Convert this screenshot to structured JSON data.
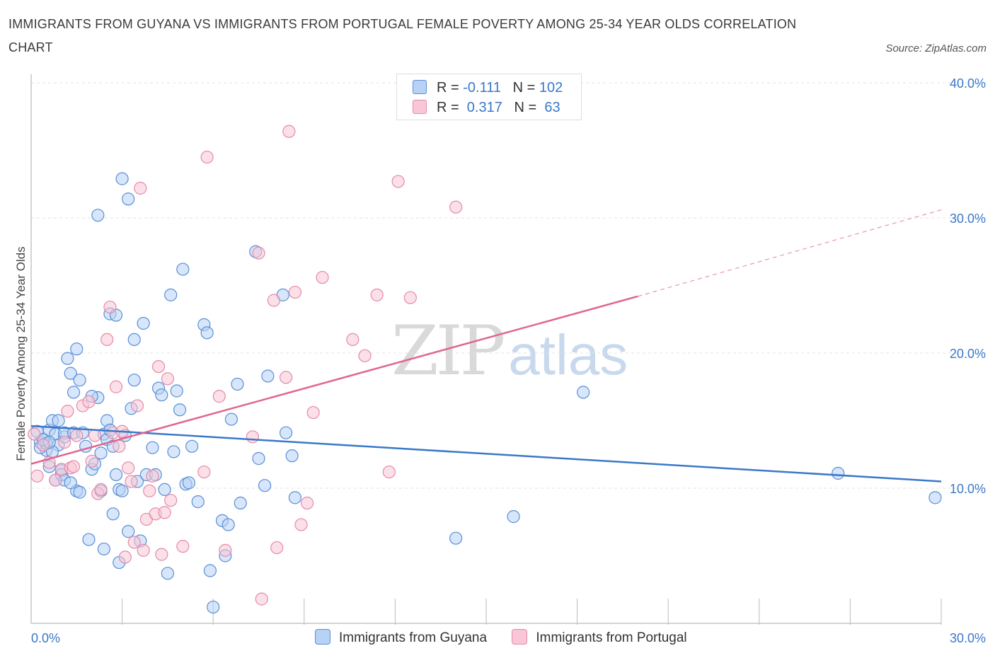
{
  "title": "IMMIGRANTS FROM GUYANA VS IMMIGRANTS FROM PORTUGAL FEMALE POVERTY AMONG 25-34 YEAR OLDS CORRELATION CHART",
  "source": "Source: ZipAtlas.com",
  "watermark": {
    "zip": "ZIP",
    "atlas": "atlas"
  },
  "colors": {
    "blue_fill": "#b7d2f5",
    "blue_stroke": "#5a8fd4",
    "blue_line": "#3b78c9",
    "pink_fill": "#f8c6d6",
    "pink_stroke": "#e58aa8",
    "pink_line": "#e0668f",
    "tick_text": "#3a78c9",
    "grid": "#e3e3e3"
  },
  "legend_top": [
    {
      "r_label": "R = ",
      "r_value": "-0.111",
      "n_label": "N = ",
      "n_value": "102"
    },
    {
      "r_label": "R = ",
      "r_value": " 0.317",
      "n_label": "N = ",
      "n_value": " 63"
    }
  ],
  "bottom_legend": [
    "Immigrants from Guyana",
    "Immigrants from Portugal"
  ],
  "chart_data": {
    "type": "scatter",
    "title": "IMMIGRANTS FROM GUYANA VS IMMIGRANTS FROM PORTUGAL FEMALE POVERTY AMONG 25-34 YEAR OLDS CORRELATION CHART",
    "xlabel": "",
    "ylabel": "Female Poverty Among 25-34 Year Olds",
    "xlim": [
      0,
      30
    ],
    "ylim": [
      0,
      40
    ],
    "x_tick_labels": [
      {
        "value": 0,
        "label": "0.0%"
      },
      {
        "value": 30,
        "label": "30.0%"
      }
    ],
    "y_tick_labels": [
      {
        "value": 10,
        "label": "10.0%"
      },
      {
        "value": 20,
        "label": "20.0%"
      },
      {
        "value": 30,
        "label": "30.0%"
      },
      {
        "value": 40,
        "label": "40.0%"
      }
    ],
    "grid": "horizontal dashed",
    "legend": "top-center",
    "series": [
      {
        "name": "Immigrants from Guyana",
        "R": -0.111,
        "N": 102,
        "trend": [
          [
            0,
            14.6
          ],
          [
            30,
            10.5
          ]
        ],
        "points": [
          [
            0.2,
            14.2
          ],
          [
            0.3,
            13.4
          ],
          [
            0.4,
            13.6
          ],
          [
            0.5,
            12.8
          ],
          [
            0.6,
            14.3
          ],
          [
            0.7,
            15.0
          ],
          [
            0.8,
            14.0
          ],
          [
            0.9,
            13.2
          ],
          [
            1.0,
            11.3
          ],
          [
            1.1,
            13.8
          ],
          [
            0.3,
            13.0
          ],
          [
            0.5,
            13.3
          ],
          [
            0.6,
            11.6
          ],
          [
            0.7,
            12.7
          ],
          [
            0.8,
            10.6
          ],
          [
            1.0,
            11.0
          ],
          [
            1.1,
            14.1
          ],
          [
            1.2,
            19.6
          ],
          [
            1.3,
            18.5
          ],
          [
            1.4,
            17.1
          ],
          [
            1.5,
            9.8
          ],
          [
            1.6,
            9.7
          ],
          [
            1.4,
            14.1
          ],
          [
            1.5,
            20.3
          ],
          [
            1.6,
            18.0
          ],
          [
            1.7,
            14.1
          ],
          [
            1.8,
            13.1
          ],
          [
            1.9,
            6.2
          ],
          [
            2.0,
            11.4
          ],
          [
            2.1,
            11.8
          ],
          [
            2.2,
            16.7
          ],
          [
            2.3,
            9.8
          ],
          [
            2.4,
            14.0
          ],
          [
            2.5,
            13.6
          ],
          [
            2.6,
            22.9
          ],
          [
            2.7,
            13.1
          ],
          [
            2.8,
            11.0
          ],
          [
            2.9,
            9.9
          ],
          [
            3.0,
            32.9
          ],
          [
            3.2,
            31.4
          ],
          [
            2.4,
            5.5
          ],
          [
            2.5,
            15.0
          ],
          [
            2.6,
            14.3
          ],
          [
            2.8,
            22.8
          ],
          [
            2.9,
            4.5
          ],
          [
            3.0,
            9.8
          ],
          [
            3.2,
            6.8
          ],
          [
            3.3,
            15.9
          ],
          [
            3.4,
            21.0
          ],
          [
            3.5,
            10.5
          ],
          [
            3.6,
            6.1
          ],
          [
            3.8,
            11.0
          ],
          [
            4.0,
            13.0
          ],
          [
            4.2,
            17.4
          ],
          [
            4.3,
            16.9
          ],
          [
            4.4,
            9.9
          ],
          [
            4.5,
            3.7
          ],
          [
            4.6,
            24.3
          ],
          [
            4.7,
            12.7
          ],
          [
            4.8,
            17.2
          ],
          [
            4.9,
            15.8
          ],
          [
            5.0,
            26.2
          ],
          [
            5.1,
            10.3
          ],
          [
            5.2,
            10.4
          ],
          [
            5.3,
            13.1
          ],
          [
            5.5,
            9.0
          ],
          [
            5.7,
            22.1
          ],
          [
            5.8,
            21.5
          ],
          [
            5.9,
            3.9
          ],
          [
            6.0,
            1.2
          ],
          [
            6.3,
            7.6
          ],
          [
            6.4,
            5.0
          ],
          [
            6.5,
            7.3
          ],
          [
            6.6,
            15.1
          ],
          [
            6.8,
            17.7
          ],
          [
            6.9,
            8.9
          ],
          [
            7.4,
            27.5
          ],
          [
            7.5,
            12.2
          ],
          [
            7.7,
            10.2
          ],
          [
            7.8,
            18.3
          ],
          [
            8.3,
            24.3
          ],
          [
            8.4,
            14.1
          ],
          [
            8.6,
            12.4
          ],
          [
            8.7,
            9.3
          ],
          [
            2.2,
            30.2
          ],
          [
            2.7,
            8.1
          ],
          [
            3.4,
            18.0
          ],
          [
            3.7,
            22.2
          ],
          [
            0.9,
            15.0
          ],
          [
            1.1,
            10.6
          ],
          [
            1.3,
            10.4
          ],
          [
            0.4,
            13.6
          ],
          [
            0.6,
            13.4
          ],
          [
            2.3,
            12.6
          ],
          [
            4.1,
            11.0
          ],
          [
            14.0,
            6.3
          ],
          [
            15.9,
            7.9
          ],
          [
            18.2,
            17.1
          ],
          [
            26.6,
            11.1
          ],
          [
            29.8,
            9.3
          ],
          [
            2.0,
            16.8
          ],
          [
            3.1,
            13.9
          ]
        ]
      },
      {
        "name": "Immigrants from Portugal",
        "R": 0.317,
        "N": 63,
        "trend": [
          [
            0,
            11.8
          ],
          [
            20,
            24.2
          ]
        ],
        "trend_extension": [
          [
            20,
            24.2
          ],
          [
            30,
            30.6
          ]
        ],
        "points": [
          [
            0.1,
            14.0
          ],
          [
            0.2,
            10.9
          ],
          [
            0.4,
            13.2
          ],
          [
            0.6,
            11.9
          ],
          [
            0.8,
            10.6
          ],
          [
            1.0,
            11.4
          ],
          [
            1.1,
            13.4
          ],
          [
            1.2,
            15.7
          ],
          [
            1.3,
            11.5
          ],
          [
            1.4,
            11.6
          ],
          [
            1.5,
            13.9
          ],
          [
            1.7,
            16.1
          ],
          [
            1.9,
            16.4
          ],
          [
            2.0,
            12.0
          ],
          [
            2.1,
            13.9
          ],
          [
            2.2,
            9.6
          ],
          [
            2.3,
            9.9
          ],
          [
            2.5,
            21.0
          ],
          [
            2.6,
            23.4
          ],
          [
            2.7,
            14.1
          ],
          [
            2.8,
            17.5
          ],
          [
            2.9,
            13.1
          ],
          [
            3.0,
            14.2
          ],
          [
            3.1,
            4.9
          ],
          [
            3.2,
            11.5
          ],
          [
            3.3,
            10.5
          ],
          [
            3.4,
            6.0
          ],
          [
            3.5,
            16.1
          ],
          [
            3.6,
            32.2
          ],
          [
            3.7,
            5.4
          ],
          [
            3.8,
            7.7
          ],
          [
            3.9,
            9.8
          ],
          [
            4.0,
            10.9
          ],
          [
            4.1,
            8.1
          ],
          [
            4.2,
            19.0
          ],
          [
            4.3,
            5.1
          ],
          [
            4.4,
            8.2
          ],
          [
            4.5,
            18.1
          ],
          [
            4.6,
            9.1
          ],
          [
            5.0,
            5.7
          ],
          [
            5.7,
            11.2
          ],
          [
            5.8,
            34.5
          ],
          [
            6.2,
            16.8
          ],
          [
            6.4,
            5.4
          ],
          [
            7.3,
            13.8
          ],
          [
            7.5,
            27.4
          ],
          [
            7.6,
            1.8
          ],
          [
            8.0,
            23.9
          ],
          [
            8.1,
            5.6
          ],
          [
            8.4,
            18.2
          ],
          [
            8.5,
            36.4
          ],
          [
            8.7,
            24.5
          ],
          [
            8.9,
            7.3
          ],
          [
            9.1,
            8.9
          ],
          [
            9.3,
            15.6
          ],
          [
            9.6,
            25.6
          ],
          [
            10.6,
            21.0
          ],
          [
            11.0,
            19.8
          ],
          [
            11.4,
            24.3
          ],
          [
            11.8,
            11.2
          ],
          [
            12.1,
            32.7
          ],
          [
            12.5,
            24.1
          ],
          [
            14.0,
            30.8
          ]
        ]
      }
    ]
  }
}
